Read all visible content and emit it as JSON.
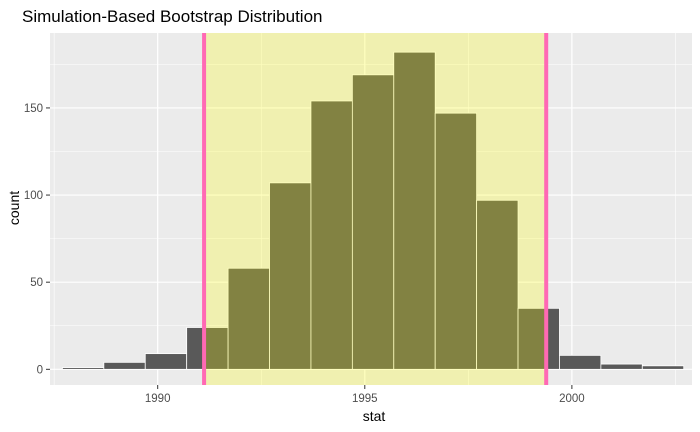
{
  "chart_data": {
    "type": "bar",
    "title": "Simulation-Based Bootstrap Distribution",
    "xlabel": "stat",
    "ylabel": "count",
    "xlim": [
      1987.4,
      2002.9
    ],
    "ylim": [
      -9,
      193
    ],
    "x_ticks": [
      1990,
      1995,
      2000
    ],
    "y_ticks": [
      0,
      50,
      100,
      150
    ],
    "grid": true,
    "bin_width": 1,
    "bins": [
      {
        "x": 1988.2,
        "count": 1
      },
      {
        "x": 1989.2,
        "count": 4
      },
      {
        "x": 1990.2,
        "count": 9
      },
      {
        "x": 1991.2,
        "count": 24
      },
      {
        "x": 1992.2,
        "count": 58
      },
      {
        "x": 1993.2,
        "count": 107
      },
      {
        "x": 1994.2,
        "count": 154
      },
      {
        "x": 1995.2,
        "count": 169
      },
      {
        "x": 1996.2,
        "count": 182
      },
      {
        "x": 1997.2,
        "count": 147
      },
      {
        "x": 1998.2,
        "count": 97
      },
      {
        "x": 1999.2,
        "count": 35
      },
      {
        "x": 2000.2,
        "count": 8
      },
      {
        "x": 2001.2,
        "count": 3
      },
      {
        "x": 2002.2,
        "count": 2
      }
    ],
    "confidence_interval": {
      "lower": 1991.12,
      "upper": 1999.38
    },
    "colors": {
      "bar_fill": "#595959",
      "bar_outline": "#ffffff",
      "shade": "#ffff00",
      "interval_line": "#ff69b4",
      "panel_background": "#ebebeb",
      "grid": "#ffffff"
    }
  }
}
